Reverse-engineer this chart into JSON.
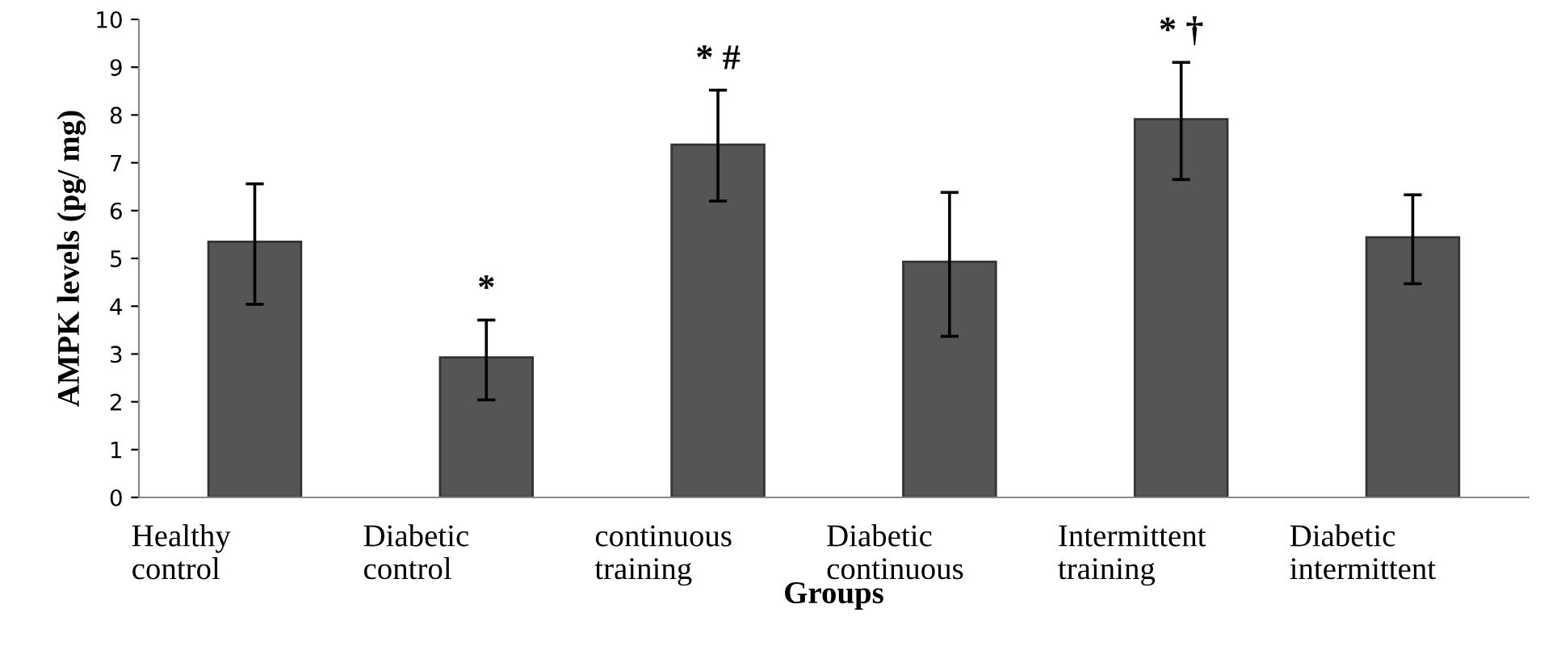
{
  "chart_data": {
    "type": "bar",
    "xlabel": "Groups",
    "ylabel": "AMPK levels (pg/ mg)",
    "categories": [
      "Healthy\ncontrol",
      "Diabetic\ncontrol",
      "continuous\ntraining",
      "Diabetic\ncontinuous",
      "Intermittent\ntraining",
      "Diabetic\nintermittent"
    ],
    "values": [
      5.35,
      2.93,
      7.38,
      4.93,
      7.91,
      5.44
    ],
    "errors": [
      [
        4.04,
        6.56
      ],
      [
        2.04,
        3.71
      ],
      [
        6.2,
        8.52
      ],
      [
        3.37,
        6.38
      ],
      [
        6.65,
        9.1
      ],
      [
        4.47,
        6.33
      ]
    ],
    "color": "#555555",
    "ylim": [
      0,
      10
    ],
    "yticks": [
      0,
      1,
      2,
      3,
      4,
      5,
      6,
      7,
      8,
      9,
      10
    ],
    "grid": false,
    "legend": false,
    "value_labels": [
      null,
      "*",
      "* #",
      null,
      "* †",
      null
    ]
  }
}
